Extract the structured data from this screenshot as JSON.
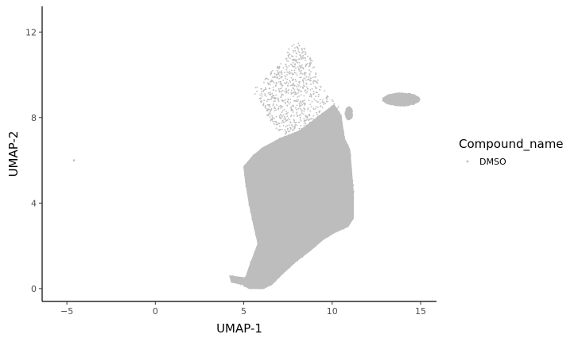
{
  "chart_data": {
    "type": "scatter",
    "title": "",
    "xlabel": "UMAP-1",
    "ylabel": "UMAP-2",
    "xlim": [
      -6.4,
      15.9
    ],
    "ylim": [
      -0.6,
      13.2
    ],
    "xticks": [
      -5,
      0,
      5,
      10,
      15
    ],
    "yticks": [
      0,
      4,
      8,
      12
    ],
    "xtick_labels": [
      "−5",
      "0",
      "5",
      "10",
      "15"
    ],
    "ytick_labels": [
      "0",
      "4",
      "8",
      "12"
    ],
    "grid": false,
    "legend": {
      "title": "Compound_name",
      "placement": "right",
      "entries": [
        "DMSO"
      ]
    },
    "point_color": "#bdbdbd",
    "series": [
      {
        "name": "DMSO",
        "regions": [
          {
            "shape": "polygon",
            "density": "dense",
            "vertices": [
              [
                5.5,
                6.2
              ],
              [
                6.1,
                6.6
              ],
              [
                7.0,
                7.0
              ],
              [
                8.2,
                7.4
              ],
              [
                9.3,
                8.1
              ],
              [
                10.1,
                8.6
              ],
              [
                10.5,
                8.1
              ],
              [
                10.7,
                7.0
              ],
              [
                11.0,
                6.5
              ],
              [
                11.2,
                4.5
              ],
              [
                11.2,
                3.3
              ],
              [
                10.9,
                2.9
              ],
              [
                10.1,
                2.6
              ],
              [
                9.5,
                2.3
              ],
              [
                8.8,
                1.8
              ],
              [
                8.0,
                1.3
              ],
              [
                7.2,
                0.7
              ],
              [
                6.6,
                0.2
              ],
              [
                6.1,
                0.0
              ],
              [
                5.3,
                0.0
              ],
              [
                4.9,
                0.2
              ],
              [
                4.3,
                0.3
              ],
              [
                4.2,
                0.6
              ],
              [
                5.1,
                0.5
              ],
              [
                5.3,
                1.0
              ],
              [
                5.8,
                2.1
              ],
              [
                5.5,
                3.2
              ],
              [
                5.3,
                4.0
              ],
              [
                5.1,
                5.0
              ],
              [
                5.0,
                5.7
              ]
            ]
          },
          {
            "shape": "polygon",
            "density": "sparse",
            "vertices": [
              [
                6.0,
                9.6
              ],
              [
                6.5,
                10.1
              ],
              [
                7.2,
                10.6
              ],
              [
                7.6,
                11.4
              ],
              [
                8.2,
                11.5
              ],
              [
                8.9,
                10.7
              ],
              [
                9.3,
                9.6
              ],
              [
                9.9,
                8.9
              ],
              [
                10.4,
                8.5
              ],
              [
                9.8,
                7.9
              ],
              [
                8.8,
                7.3
              ],
              [
                7.6,
                7.1
              ],
              [
                6.8,
                7.5
              ],
              [
                6.1,
                8.4
              ],
              [
                5.4,
                9.3
              ]
            ]
          },
          {
            "shape": "ellipse",
            "density": "dense",
            "center": [
              13.9,
              8.85
            ],
            "radii": [
              1.05,
              0.3
            ]
          },
          {
            "shape": "ellipse",
            "density": "dense",
            "center": [
              10.95,
              8.2
            ],
            "radii": [
              0.2,
              0.3
            ]
          }
        ],
        "outliers": [
          [
            -4.6,
            6.0
          ]
        ]
      }
    ]
  }
}
